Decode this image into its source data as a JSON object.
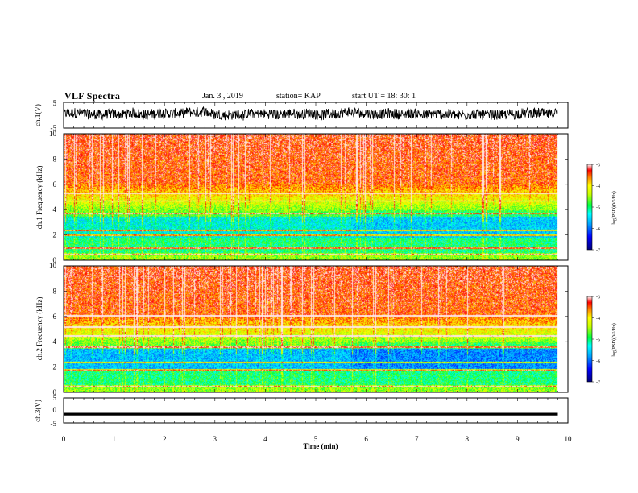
{
  "header": {
    "title": "VLF Spectra",
    "date": "Jan. 3 , 2019",
    "station": "station= KAP",
    "start": "start UT = 18: 30: 1"
  },
  "chart_data": [
    {
      "type": "line",
      "title": "VLF Spectra",
      "ylabel": "ch.1(V)",
      "ylim": [
        -5,
        5
      ],
      "yticks": [
        "5",
        "-5"
      ],
      "xlim": [
        0,
        10
      ],
      "description_values": {
        "baseline_v": 0.5,
        "amplitude_v": 2.0
      },
      "color": "#000000"
    },
    {
      "type": "heatmap",
      "ylabel": "ch.1 Frequency (kHz)",
      "ylim": [
        0,
        10
      ],
      "yticks": [
        "0",
        "2",
        "4",
        "6",
        "8",
        "10"
      ],
      "xlim": [
        0,
        10
      ],
      "colorbar": {
        "label": "log(PSD)(V²/Hz)",
        "range": [
          -7,
          -3
        ],
        "ticks": [
          "-3",
          "-4",
          "-5",
          "-6",
          "-7"
        ]
      },
      "bands_khz": [
        0.5,
        1.0,
        2.0,
        2.4,
        3.7,
        4.7,
        5.3
      ]
    },
    {
      "type": "heatmap",
      "ylabel": "ch.2 Frequency (kHz)",
      "ylim": [
        0,
        10
      ],
      "yticks": [
        "0",
        "2",
        "4",
        "6",
        "8",
        "10"
      ],
      "xlim": [
        0,
        10
      ],
      "colorbar": {
        "label": "log(PSD)(V²/Hz)",
        "range": [
          -7,
          -3
        ],
        "ticks": [
          "-3",
          "-4",
          "-5",
          "-6",
          "-7"
        ]
      },
      "bands_khz": [
        0.5,
        1.8,
        2.4,
        3.6,
        4.5,
        5.2,
        6.1
      ]
    },
    {
      "type": "line",
      "ylabel": "ch.3(V)",
      "ylim": [
        -5,
        5
      ],
      "yticks": [
        "5",
        "0",
        "-5"
      ],
      "xlim": [
        0,
        10
      ],
      "xlabel": "Time (min)",
      "xticks": [
        "0",
        "1",
        "2",
        "3",
        "4",
        "5",
        "6",
        "7",
        "8",
        "9",
        "10"
      ],
      "constant_value_v": -1.5,
      "color": "#000000"
    }
  ],
  "data_end_min": 9.8
}
